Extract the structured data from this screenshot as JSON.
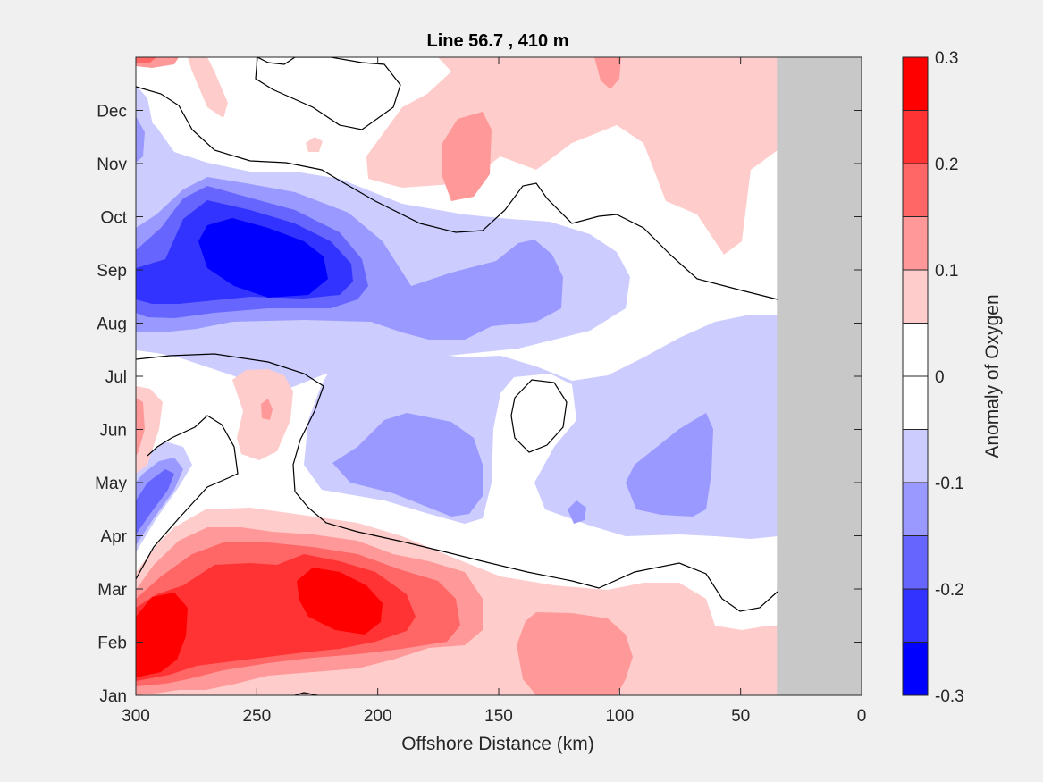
{
  "chart_data": {
    "type": "heatmap",
    "subtype": "filled-contour",
    "title": "Line 56.7 , 410 m",
    "xlabel": "Offshore Distance (km)",
    "ylabel": "",
    "xlim": [
      300,
      0
    ],
    "x_direction": "reversed",
    "xticks": [
      300,
      250,
      200,
      150,
      100,
      50,
      0
    ],
    "ylim": [
      "Jan",
      "Jan"
    ],
    "yticks": [
      "Jan",
      "Feb",
      "Mar",
      "Apr",
      "May",
      "Jun",
      "Jul",
      "Aug",
      "Sep",
      "Oct",
      "Nov",
      "Dec"
    ],
    "colorbar": {
      "label": "Anomaly of Oxygen",
      "range": [
        -0.3,
        0.3
      ],
      "tick_labels": [
        "0.3",
        "0.2",
        "0.1",
        "0",
        "-0.1",
        "-0.2",
        "-0.3"
      ],
      "ticks": [
        0.3,
        0.2,
        0.1,
        0,
        -0.1,
        -0.2,
        -0.3
      ],
      "levels": [
        -0.3,
        -0.25,
        -0.2,
        -0.15,
        -0.1,
        -0.05,
        0.05,
        0.1,
        0.15,
        0.2,
        0.25,
        0.3
      ],
      "bins_top_to_bottom": [
        "#ff0000",
        "#ff3333",
        "#ff6666",
        "#ff9999",
        "#ffcccc",
        "#ffffff",
        "#ffffff",
        "#ccccff",
        "#9999ff",
        "#6666ff",
        "#3333ff",
        "#0000ff"
      ]
    },
    "no_data_region": {
      "x_from": 35,
      "x_to": 0,
      "color": "#c8c8c8"
    },
    "zero_contour_color": "#000000",
    "features": [
      {
        "sign": "negative",
        "peak": -0.3,
        "x_center": 235,
        "month": "Sep"
      },
      {
        "sign": "negative",
        "peak": -0.15,
        "x_center": 175,
        "month": "May"
      },
      {
        "sign": "negative",
        "peak": -0.15,
        "x_center": 70,
        "month": "May"
      },
      {
        "sign": "negative",
        "peak": -0.2,
        "x_center": 295,
        "month": "Apr"
      },
      {
        "sign": "positive",
        "peak": 0.3,
        "x_center": 290,
        "month": "Feb"
      },
      {
        "sign": "positive",
        "peak": 0.3,
        "x_center": 215,
        "month": "Mar"
      },
      {
        "sign": "positive",
        "peak": 0.15,
        "x_center": 115,
        "month": "Feb"
      },
      {
        "sign": "positive",
        "peak": 0.15,
        "x_center": 160,
        "month": "Nov"
      },
      {
        "sign": "positive",
        "peak": 0.1,
        "x_center": 245,
        "month": "Jun"
      },
      {
        "sign": "positive",
        "peak": 0.15,
        "x_center": 300,
        "month": "Jun"
      }
    ]
  }
}
